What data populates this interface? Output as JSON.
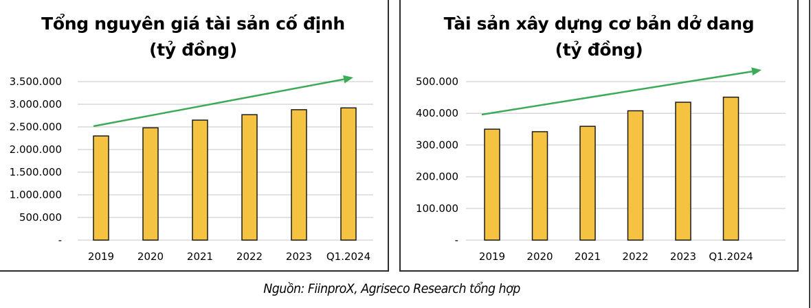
{
  "source_note": "Nguồn: FiinproX, Agriseco Research tổng hợp",
  "colors": {
    "bar_fill": "#F5C242",
    "bar_stroke": "#1a1a1a",
    "trend_arrow": "#3DAA57",
    "gridline": "#D9D9D9"
  },
  "charts": [
    {
      "title_line1": "Tổng nguyên giá tài sản cố định",
      "title_line2": "(tỷ đồng)",
      "y_ticks": [
        "3.500.000",
        "3.000.000",
        "2.500.000",
        "2.000.000",
        "1.500.000",
        "1.000.000",
        "500.000",
        "-"
      ],
      "x_labels": [
        "2019",
        "2020",
        "2021",
        "2022",
        "2023",
        "Q1.2024"
      ]
    },
    {
      "title_line1": "Tài sản xây dựng cơ bản dở dang",
      "title_line2": "(tỷ đồng)",
      "y_ticks": [
        "500.000",
        "400.000",
        "300.000",
        "200.000",
        "100.000",
        "-"
      ],
      "x_labels": [
        "2019",
        "2020",
        "2021",
        "2022",
        "2023",
        "Q1.2024"
      ]
    }
  ],
  "chart_data": [
    {
      "type": "bar",
      "title": "Tổng nguyên giá tài sản cố định (tỷ đồng)",
      "xlabel": "",
      "ylabel": "",
      "categories": [
        "2019",
        "2020",
        "2021",
        "2022",
        "2023",
        "Q1.2024"
      ],
      "values": [
        2300000,
        2480000,
        2650000,
        2770000,
        2880000,
        2920000
      ],
      "ylim": [
        0,
        3500000
      ],
      "y_ticks": [
        0,
        500000,
        1000000,
        1500000,
        2000000,
        2500000,
        3000000,
        3500000
      ],
      "grid": true,
      "legend": "none",
      "annotations": [
        "green upward trend arrow from 2019 to Q1.2024"
      ]
    },
    {
      "type": "bar",
      "title": "Tài sản xây dựng cơ bản dở dang (tỷ đồng)",
      "xlabel": "",
      "ylabel": "",
      "categories": [
        "2019",
        "2020",
        "2021",
        "2022",
        "2023",
        "Q1.2024"
      ],
      "values": [
        350000,
        342000,
        359000,
        408000,
        435000,
        451000
      ],
      "ylim": [
        0,
        500000
      ],
      "y_ticks": [
        0,
        100000,
        200000,
        300000,
        400000,
        500000
      ],
      "grid": true,
      "legend": "none",
      "annotations": [
        "green upward trend arrow from 2019 to Q1.2024"
      ]
    }
  ]
}
